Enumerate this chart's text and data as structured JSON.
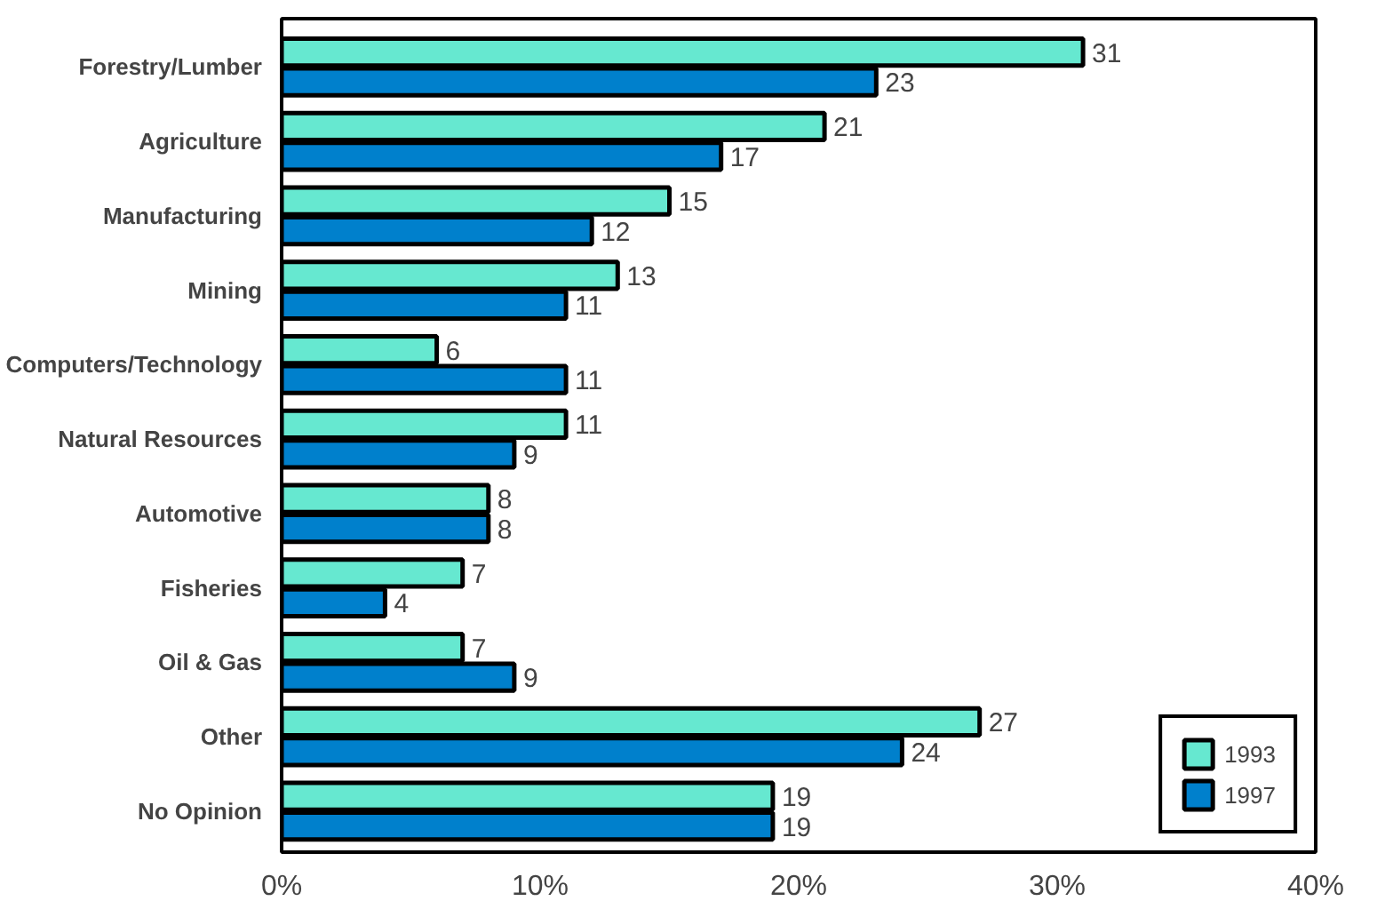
{
  "chart_data": {
    "type": "bar",
    "orientation": "horizontal",
    "categories": [
      "Forestry/Lumber",
      "Agriculture",
      "Manufacturing",
      "Mining",
      "Computers/Technology",
      "Natural Resources",
      "Automotive",
      "Fisheries",
      "Oil & Gas",
      "Other",
      "No Opinion"
    ],
    "series": [
      {
        "name": "1993",
        "color": "#66e8d0",
        "values": [
          31,
          21,
          15,
          13,
          6,
          11,
          8,
          7,
          7,
          27,
          19
        ]
      },
      {
        "name": "1997",
        "color": "#0080cc",
        "values": [
          23,
          17,
          12,
          11,
          11,
          9,
          8,
          4,
          9,
          24,
          19
        ]
      }
    ],
    "xlim": [
      0,
      40
    ],
    "xticks": [
      {
        "value": 0,
        "label": "0%"
      },
      {
        "value": 10,
        "label": "10%"
      },
      {
        "value": 20,
        "label": "20%"
      },
      {
        "value": 30,
        "label": "30%"
      },
      {
        "value": 40,
        "label": "40%"
      }
    ],
    "data_labels": true,
    "legend": "bottom right",
    "grid": false
  }
}
